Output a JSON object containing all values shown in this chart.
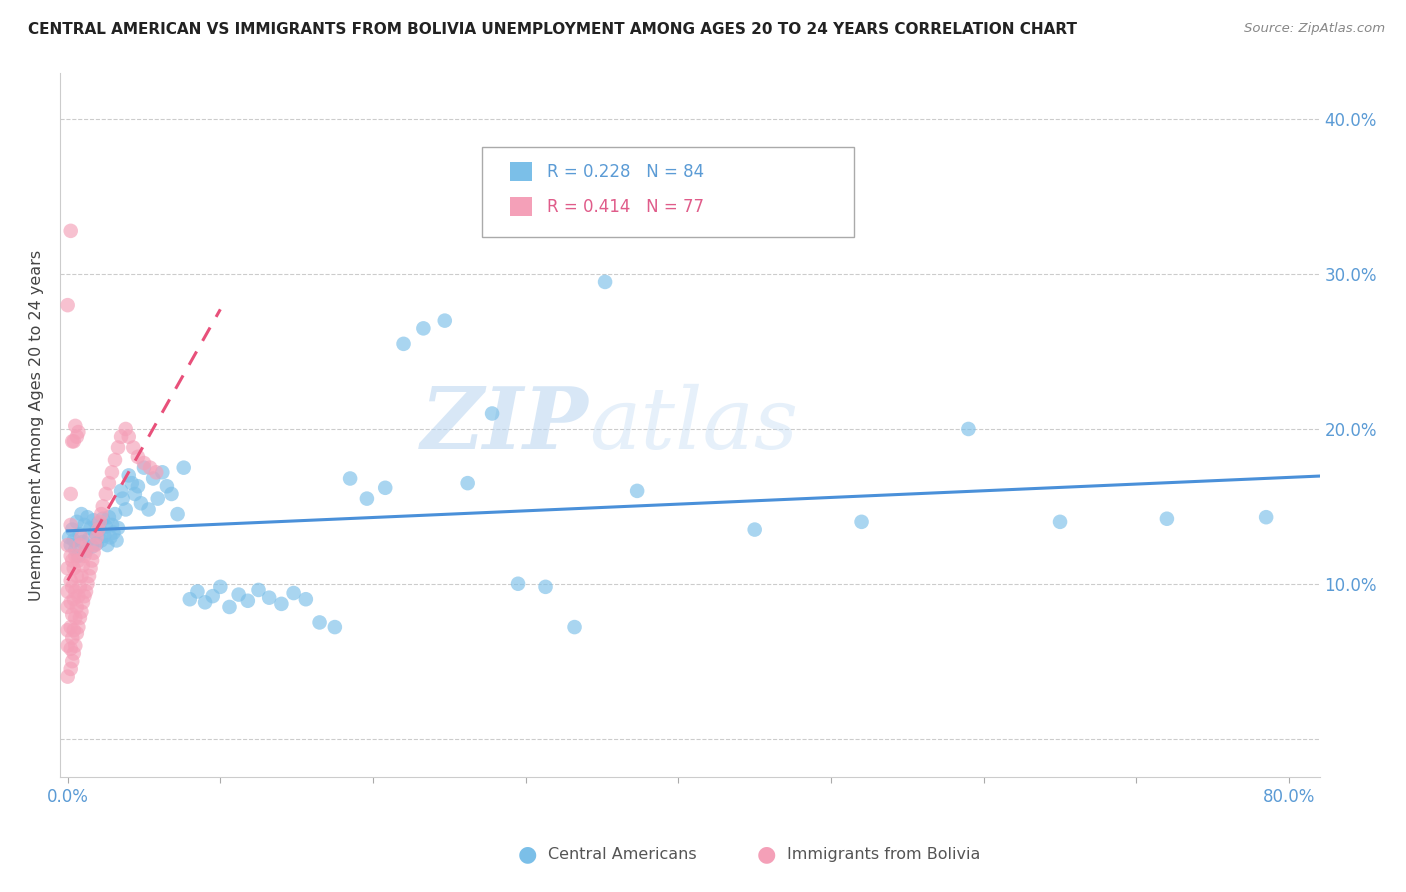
{
  "title": "CENTRAL AMERICAN VS IMMIGRANTS FROM BOLIVIA UNEMPLOYMENT AMONG AGES 20 TO 24 YEARS CORRELATION CHART",
  "source": "Source: ZipAtlas.com",
  "ylabel": "Unemployment Among Ages 20 to 24 years",
  "xlim": [
    -0.005,
    0.82
  ],
  "ylim": [
    -0.025,
    0.43
  ],
  "xticks": [
    0.0,
    0.1,
    0.2,
    0.3,
    0.4,
    0.5,
    0.6,
    0.7,
    0.8
  ],
  "yticks": [
    0.0,
    0.1,
    0.2,
    0.3,
    0.4
  ],
  "xtick_labels": [
    "0.0%",
    "",
    "",
    "",
    "",
    "",
    "",
    "",
    "80.0%"
  ],
  "right_ytick_labels": [
    "",
    "10.0%",
    "20.0%",
    "30.0%",
    "40.0%"
  ],
  "blue_color": "#7bbfe8",
  "pink_color": "#f4a0b8",
  "blue_line_color": "#4a90d9",
  "pink_line_color": "#e8507a",
  "blue_R": 0.228,
  "blue_N": 84,
  "pink_R": 0.414,
  "pink_N": 77,
  "watermark_zip": "ZIP",
  "watermark_atlas": "atlas",
  "legend_blue_label": "Central Americans",
  "legend_pink_label": "Immigrants from Bolivia",
  "blue_scatter_x": [
    0.001,
    0.002,
    0.003,
    0.004,
    0.005,
    0.006,
    0.007,
    0.008,
    0.009,
    0.01,
    0.011,
    0.012,
    0.013,
    0.014,
    0.015,
    0.016,
    0.017,
    0.018,
    0.019,
    0.02,
    0.021,
    0.022,
    0.023,
    0.024,
    0.025,
    0.026,
    0.027,
    0.028,
    0.029,
    0.03,
    0.031,
    0.032,
    0.033,
    0.035,
    0.036,
    0.038,
    0.04,
    0.042,
    0.044,
    0.046,
    0.048,
    0.05,
    0.053,
    0.056,
    0.059,
    0.062,
    0.065,
    0.068,
    0.072,
    0.076,
    0.08,
    0.085,
    0.09,
    0.095,
    0.1,
    0.106,
    0.112,
    0.118,
    0.125,
    0.132,
    0.14,
    0.148,
    0.156,
    0.165,
    0.175,
    0.185,
    0.196,
    0.208,
    0.22,
    0.233,
    0.247,
    0.262,
    0.278,
    0.295,
    0.313,
    0.332,
    0.352,
    0.373,
    0.45,
    0.52,
    0.59,
    0.65,
    0.72,
    0.785
  ],
  "blue_scatter_y": [
    0.13,
    0.125,
    0.135,
    0.128,
    0.122,
    0.14,
    0.118,
    0.132,
    0.145,
    0.127,
    0.138,
    0.121,
    0.143,
    0.129,
    0.136,
    0.124,
    0.141,
    0.133,
    0.126,
    0.139,
    0.135,
    0.128,
    0.142,
    0.131,
    0.137,
    0.125,
    0.143,
    0.13,
    0.138,
    0.133,
    0.145,
    0.128,
    0.136,
    0.16,
    0.155,
    0.148,
    0.17,
    0.165,
    0.158,
    0.163,
    0.152,
    0.175,
    0.148,
    0.168,
    0.155,
    0.172,
    0.163,
    0.158,
    0.145,
    0.175,
    0.09,
    0.095,
    0.088,
    0.092,
    0.098,
    0.085,
    0.093,
    0.089,
    0.096,
    0.091,
    0.087,
    0.094,
    0.09,
    0.075,
    0.072,
    0.168,
    0.155,
    0.162,
    0.255,
    0.265,
    0.27,
    0.165,
    0.21,
    0.1,
    0.098,
    0.072,
    0.295,
    0.16,
    0.135,
    0.14,
    0.2,
    0.14,
    0.142,
    0.143
  ],
  "pink_scatter_x": [
    0.0,
    0.0,
    0.0,
    0.0,
    0.0,
    0.0,
    0.0,
    0.0,
    0.002,
    0.002,
    0.002,
    0.002,
    0.002,
    0.002,
    0.002,
    0.002,
    0.002,
    0.003,
    0.003,
    0.003,
    0.003,
    0.003,
    0.003,
    0.004,
    0.004,
    0.004,
    0.004,
    0.004,
    0.005,
    0.005,
    0.005,
    0.005,
    0.005,
    0.006,
    0.006,
    0.006,
    0.006,
    0.007,
    0.007,
    0.007,
    0.007,
    0.008,
    0.008,
    0.008,
    0.009,
    0.009,
    0.009,
    0.01,
    0.01,
    0.011,
    0.011,
    0.012,
    0.012,
    0.013,
    0.014,
    0.015,
    0.016,
    0.017,
    0.018,
    0.019,
    0.02,
    0.021,
    0.022,
    0.023,
    0.025,
    0.027,
    0.029,
    0.031,
    0.033,
    0.035,
    0.038,
    0.04,
    0.043,
    0.046,
    0.05,
    0.054,
    0.058
  ],
  "pink_scatter_y": [
    0.04,
    0.06,
    0.07,
    0.085,
    0.095,
    0.11,
    0.125,
    0.28,
    0.045,
    0.058,
    0.072,
    0.088,
    0.102,
    0.118,
    0.138,
    0.158,
    0.328,
    0.05,
    0.065,
    0.08,
    0.098,
    0.115,
    0.192,
    0.055,
    0.07,
    0.09,
    0.11,
    0.192,
    0.06,
    0.078,
    0.095,
    0.118,
    0.202,
    0.068,
    0.085,
    0.105,
    0.195,
    0.072,
    0.092,
    0.115,
    0.198,
    0.078,
    0.098,
    0.125,
    0.082,
    0.105,
    0.13,
    0.088,
    0.112,
    0.092,
    0.118,
    0.095,
    0.122,
    0.1,
    0.105,
    0.11,
    0.115,
    0.12,
    0.125,
    0.13,
    0.135,
    0.14,
    0.145,
    0.15,
    0.158,
    0.165,
    0.172,
    0.18,
    0.188,
    0.195,
    0.2,
    0.195,
    0.188,
    0.182,
    0.178,
    0.175,
    0.172
  ]
}
